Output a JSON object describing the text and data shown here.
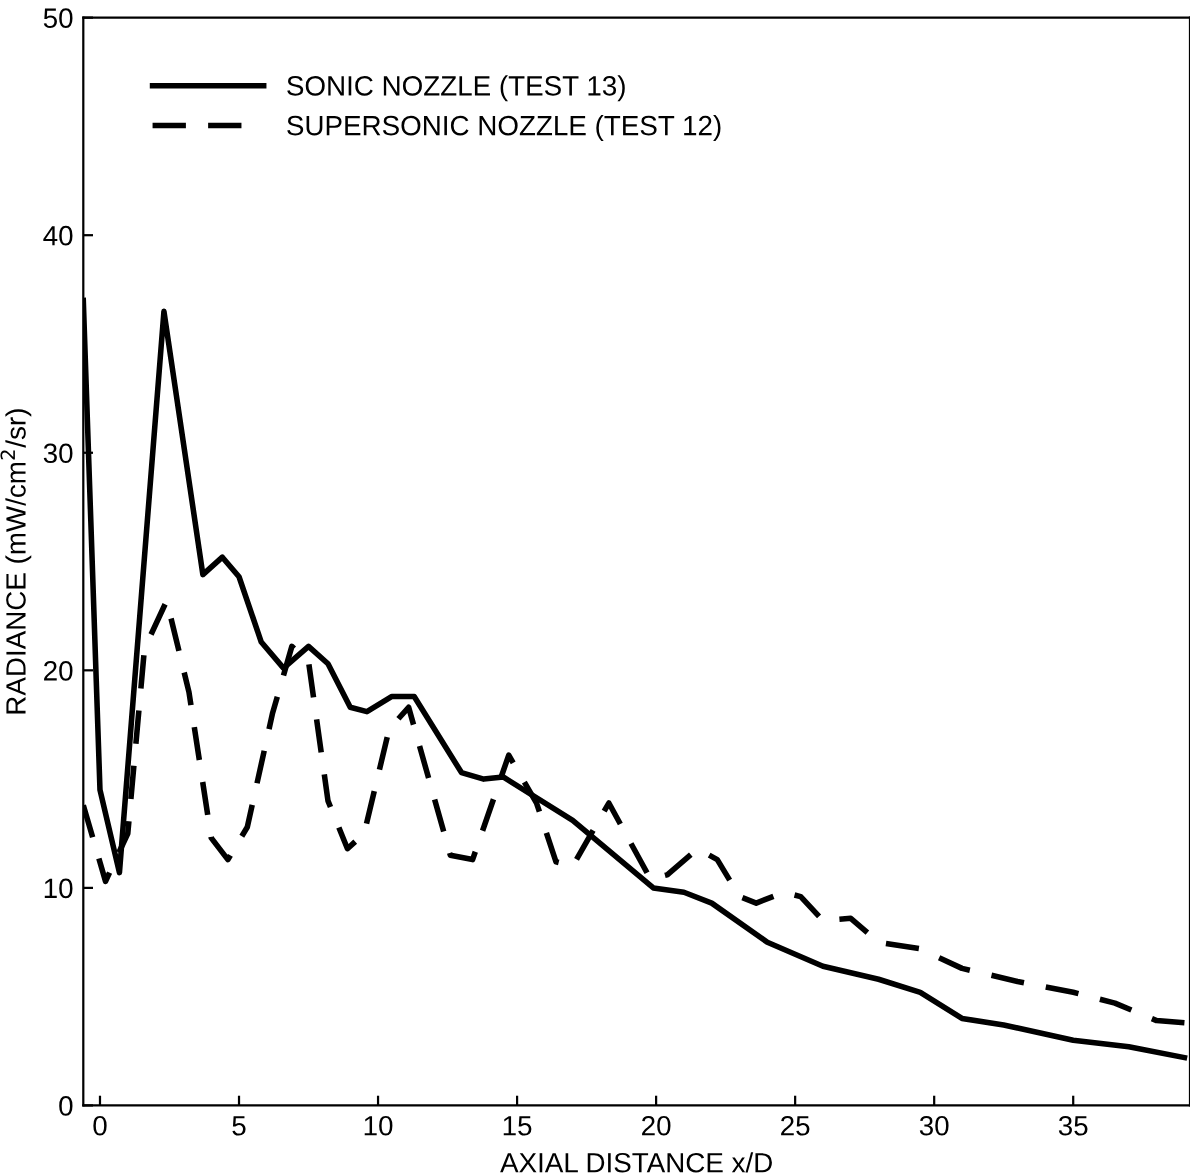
{
  "chart_data": {
    "type": "line",
    "xlabel": "AXIAL DISTANCE x/D",
    "ylabel": "RADIANCE (mW/cm$^{2}$/sr)",
    "xlim": [
      -0.6,
      39.2
    ],
    "ylim": [
      0,
      50
    ],
    "xticks": [
      0,
      5,
      10,
      15,
      20,
      25,
      30,
      35
    ],
    "yticks": [
      0,
      10,
      20,
      30,
      40,
      50
    ],
    "grid": false,
    "legend": "top left",
    "marker": "none",
    "series": [
      {
        "name": "SONIC NOZZLE (TEST 13)",
        "color": "#000000",
        "line_style": "solid",
        "x": [
          -0.6,
          0,
          0.7,
          2.3,
          3.7,
          4.4,
          5,
          5.8,
          6.6,
          7.5,
          8.2,
          9,
          9.6,
          10.5,
          11.3,
          13,
          13.8,
          14.5,
          17,
          19.9,
          21,
          22,
          24,
          26,
          28,
          29.5,
          31,
          32.5,
          35,
          37,
          39
        ],
        "values": [
          37,
          14.5,
          10.7,
          36.5,
          24.4,
          25.2,
          24.3,
          21.3,
          20.1,
          21.1,
          20.3,
          18.3,
          18.1,
          18.8,
          18.8,
          15.3,
          15.0,
          15.1,
          13.1,
          10.0,
          9.8,
          9.3,
          7.5,
          6.4,
          5.8,
          5.2,
          4.0,
          3.7,
          3.0,
          2.7,
          2.2
        ]
      },
      {
        "name": "SUPERSONIC NOZZLE (TEST 12)",
        "color": "#000000",
        "line_style": "dashed",
        "x": [
          -0.6,
          0.2,
          1,
          1.6,
          2.4,
          3.2,
          4,
          4.6,
          5.3,
          6.2,
          6.9,
          7.5,
          8.2,
          8.9,
          9.5,
          10.4,
          11.1,
          12.6,
          13.4,
          14.7,
          15.7,
          16.4,
          17,
          18.3,
          19.8,
          20.4,
          21.5,
          22.2,
          23,
          23.6,
          24.6,
          25.2,
          26,
          27,
          28,
          29.5,
          31,
          33,
          35,
          36.5,
          38,
          39
        ],
        "values": [
          13.8,
          10.3,
          12.5,
          21,
          23.2,
          19,
          12.3,
          11.3,
          12.8,
          18,
          21.1,
          20.4,
          14,
          11.8,
          12.5,
          17.3,
          18.3,
          11.5,
          11.3,
          16.1,
          13.9,
          11.2,
          11.0,
          13.9,
          10.4,
          10.6,
          11.8,
          11.3,
          9.6,
          9.3,
          9.8,
          9.6,
          8.5,
          8.6,
          7.5,
          7.2,
          6.3,
          5.7,
          5.2,
          4.7,
          3.9,
          3.8
        ]
      }
    ]
  }
}
